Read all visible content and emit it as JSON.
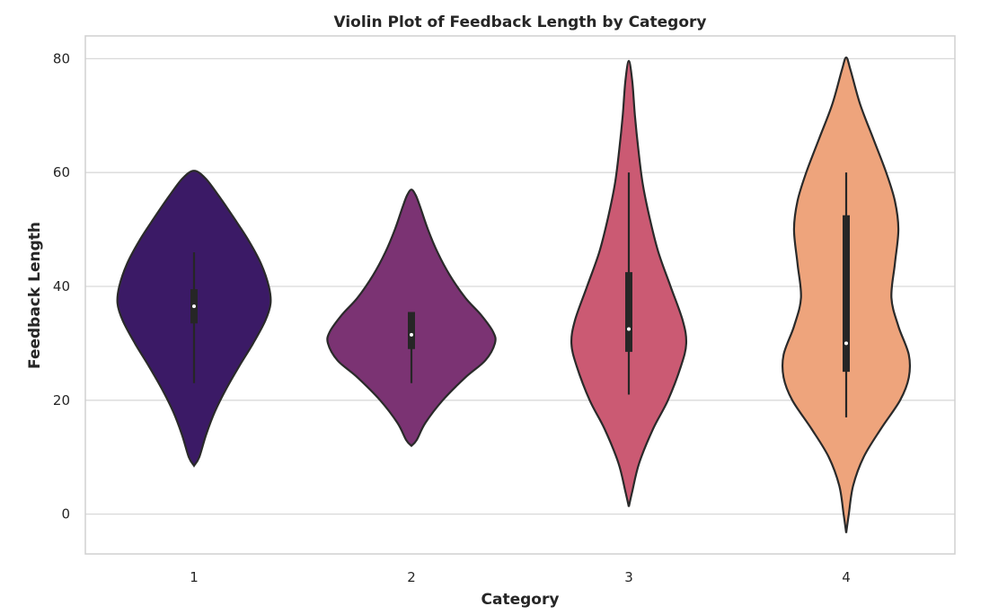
{
  "chart_data": {
    "type": "violin",
    "title": "Violin Plot of Feedback Length by Category",
    "xlabel": "Category",
    "ylabel": "Feedback Length",
    "categories": [
      "1",
      "2",
      "3",
      "4"
    ],
    "ylim": [
      -7,
      84
    ],
    "yticks": [
      0,
      20,
      40,
      60,
      80
    ],
    "grid": true,
    "series": [
      {
        "category": "1",
        "color": "#3b1a66",
        "min": 23,
        "q1": 33.5,
        "median": 36.5,
        "q3": 39.5,
        "max": 46,
        "profile": [
          [
            8.5,
            0.0
          ],
          [
            10,
            0.06
          ],
          [
            14,
            0.14
          ],
          [
            18,
            0.24
          ],
          [
            22,
            0.37
          ],
          [
            26,
            0.52
          ],
          [
            30,
            0.68
          ],
          [
            34,
            0.82
          ],
          [
            37,
            0.88
          ],
          [
            40,
            0.86
          ],
          [
            44,
            0.77
          ],
          [
            48,
            0.63
          ],
          [
            52,
            0.46
          ],
          [
            56,
            0.28
          ],
          [
            59,
            0.13
          ],
          [
            60.3,
            0.0
          ]
        ]
      },
      {
        "category": "2",
        "color": "#7b3373",
        "min": 23,
        "q1": 29,
        "median": 31.5,
        "q3": 35.5,
        "max": 35.5,
        "profile": [
          [
            12,
            0.0
          ],
          [
            13,
            0.06
          ],
          [
            16,
            0.16
          ],
          [
            20,
            0.36
          ],
          [
            24,
            0.62
          ],
          [
            27,
            0.85
          ],
          [
            30,
            0.96
          ],
          [
            32,
            0.94
          ],
          [
            35,
            0.8
          ],
          [
            38,
            0.62
          ],
          [
            42,
            0.44
          ],
          [
            46,
            0.3
          ],
          [
            50,
            0.19
          ],
          [
            54,
            0.1
          ],
          [
            56,
            0.05
          ],
          [
            57,
            0.0
          ]
        ]
      },
      {
        "category": "3",
        "color": "#cb5a73",
        "min": 21,
        "q1": 28.5,
        "median": 32.5,
        "q3": 42.5,
        "max": 60,
        "profile": [
          [
            1.3,
            0.0
          ],
          [
            4,
            0.04
          ],
          [
            9,
            0.12
          ],
          [
            15,
            0.28
          ],
          [
            20,
            0.45
          ],
          [
            26,
            0.6
          ],
          [
            30,
            0.66
          ],
          [
            34,
            0.62
          ],
          [
            40,
            0.48
          ],
          [
            46,
            0.34
          ],
          [
            52,
            0.24
          ],
          [
            58,
            0.16
          ],
          [
            64,
            0.11
          ],
          [
            70,
            0.07
          ],
          [
            76,
            0.04
          ],
          [
            79.6,
            0.0
          ]
        ]
      },
      {
        "category": "4",
        "color": "#eea47c",
        "min": 17,
        "q1": 25,
        "median": 30,
        "q3": 52.5,
        "max": 60,
        "profile": [
          [
            -3.3,
            0.0
          ],
          [
            0,
            0.03
          ],
          [
            5,
            0.08
          ],
          [
            10,
            0.2
          ],
          [
            15,
            0.4
          ],
          [
            20,
            0.62
          ],
          [
            24,
            0.72
          ],
          [
            28,
            0.72
          ],
          [
            33,
            0.6
          ],
          [
            38,
            0.52
          ],
          [
            44,
            0.56
          ],
          [
            50,
            0.6
          ],
          [
            55,
            0.56
          ],
          [
            60,
            0.46
          ],
          [
            66,
            0.31
          ],
          [
            72,
            0.16
          ],
          [
            78,
            0.05
          ],
          [
            80.2,
            0.0
          ]
        ]
      }
    ]
  }
}
